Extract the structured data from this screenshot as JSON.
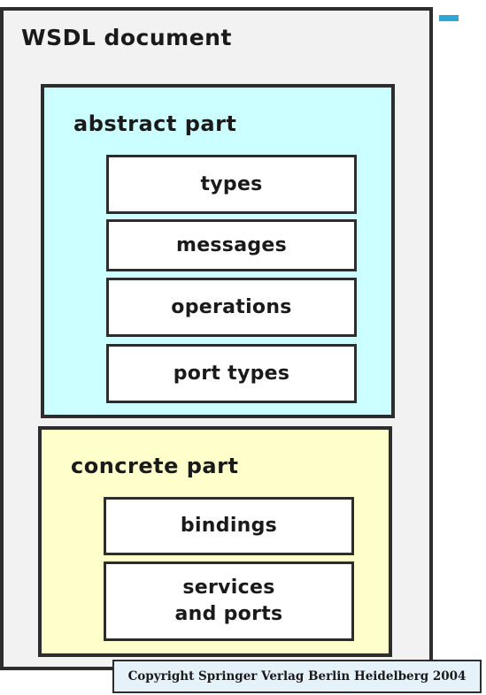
{
  "diagram": {
    "outer": {
      "title": "WSDL document",
      "fill": "#f2f2f2"
    },
    "abstract": {
      "title": "abstract part",
      "fill": "#ccffff",
      "items": [
        "types",
        "messages",
        "operations",
        "port types"
      ]
    },
    "concrete": {
      "title": "concrete part",
      "fill": "#ffffcc",
      "items": [
        "bindings",
        "services and ports"
      ]
    },
    "copyright": "Copyright Springer Verlag Berlin Heidelberg 2004",
    "colors": {
      "border": "#2d2d2d",
      "accent": "#31a5d4"
    }
  }
}
